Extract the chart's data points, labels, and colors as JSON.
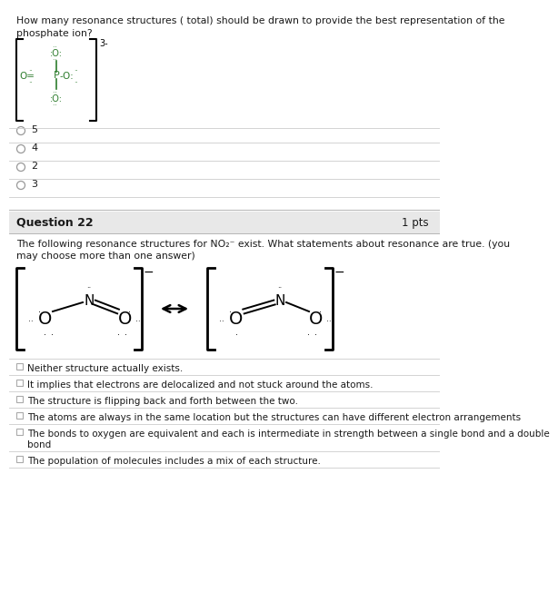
{
  "white": "#ffffff",
  "black": "#000000",
  "dark_text": "#1a1a1a",
  "green": "#2e7d2e",
  "q_header_bg": "#e8e8e8",
  "line_color": "#cccccc",
  "radio_color": "#999999",
  "checkbox_color": "#aaaaaa",
  "q1_text_line1": "How many resonance structures ( total) should be drawn to provide the best representation of the",
  "q1_text_line2": "phosphate ion?",
  "q1_choices": [
    "5",
    "4",
    "2",
    "3"
  ],
  "q22_header": "Question 22",
  "q22_pts": "1 pts",
  "q22_text_line1": "The following resonance structures for NO₂⁻ exist. What statements about resonance are true. (you",
  "q22_text_line2": "may choose more than one answer)",
  "q22_choices": [
    "Neither structure actually exists.",
    "It implies that electrons are delocalized and not stuck around the atoms.",
    "The structure is flipping back and forth between the two.",
    "The atoms are always in the same location but the structures can have different electron arrangements",
    "The bonds to oxygen are equivalent and each is intermediate in strength between a single bond and a double\nbond",
    "The population of molecules includes a mix of each structure."
  ]
}
